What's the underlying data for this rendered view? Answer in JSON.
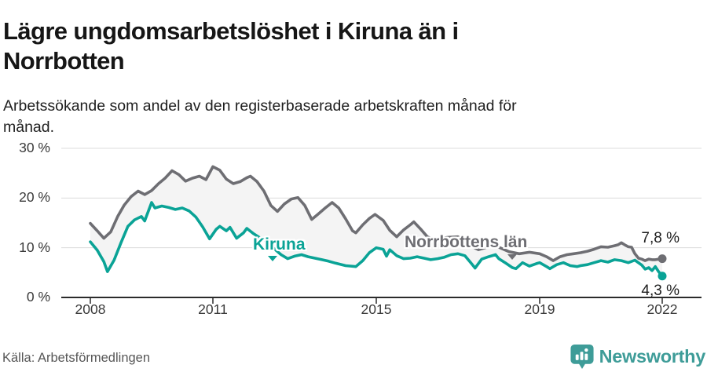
{
  "header": {
    "title_lines": [
      "Lägre ungdomsarbetslöshet i Kiruna än i",
      "Norrbotten"
    ],
    "subtitle_lines": [
      "Arbetssökande som andel av den registerbaserade arbetskraften månad för",
      "månad."
    ]
  },
  "footer": {
    "source": "Källa: Arbetsförmedlingen",
    "logo_text": "Newsworthy",
    "logo_color": "#3E9C98",
    "logo_icon": "speech-bubble-bar-chart"
  },
  "chart_data": {
    "type": "line",
    "unit": "%",
    "grid": "horizontal",
    "ylim": [
      0,
      30
    ],
    "xlim": [
      2007.6,
      2022.95
    ],
    "grid_color": "#dcdcdc",
    "axis_color": "#2b2b2b",
    "area_fill_color": "#f4f4f4",
    "y_ticks": [
      {
        "value": 0,
        "label": "0 %"
      },
      {
        "value": 10,
        "label": "10 %"
      },
      {
        "value": 20,
        "label": "20 %"
      },
      {
        "value": 30,
        "label": "30 %"
      }
    ],
    "x_ticks": [
      {
        "year": 2008,
        "label": "2008"
      },
      {
        "year": 2011,
        "label": "2011"
      },
      {
        "year": 2015,
        "label": "2015"
      },
      {
        "year": 2019,
        "label": "2019"
      },
      {
        "year": 2022,
        "label": "2022"
      }
    ],
    "series": [
      {
        "name": "Norrbottens län",
        "color": "#6e6e73",
        "end_label": "7,8 %",
        "end_value": 7.8,
        "points": [
          [
            2008.0,
            14.9
          ],
          [
            2008.17,
            13.4
          ],
          [
            2008.33,
            11.9
          ],
          [
            2008.5,
            13.2
          ],
          [
            2008.67,
            16.3
          ],
          [
            2008.83,
            18.6
          ],
          [
            2009.0,
            20.3
          ],
          [
            2009.17,
            21.4
          ],
          [
            2009.33,
            20.7
          ],
          [
            2009.5,
            21.5
          ],
          [
            2009.67,
            22.9
          ],
          [
            2009.83,
            24.0
          ],
          [
            2010.0,
            25.5
          ],
          [
            2010.17,
            24.7
          ],
          [
            2010.33,
            23.4
          ],
          [
            2010.5,
            24.0
          ],
          [
            2010.67,
            24.4
          ],
          [
            2010.83,
            23.7
          ],
          [
            2011.0,
            26.3
          ],
          [
            2011.17,
            25.6
          ],
          [
            2011.33,
            23.8
          ],
          [
            2011.5,
            22.9
          ],
          [
            2011.67,
            23.3
          ],
          [
            2011.83,
            24.1
          ],
          [
            2011.92,
            24.4
          ],
          [
            2012.08,
            23.3
          ],
          [
            2012.25,
            21.4
          ],
          [
            2012.42,
            18.5
          ],
          [
            2012.58,
            17.3
          ],
          [
            2012.75,
            18.8
          ],
          [
            2012.92,
            19.8
          ],
          [
            2013.08,
            20.1
          ],
          [
            2013.25,
            18.5
          ],
          [
            2013.42,
            15.7
          ],
          [
            2013.58,
            16.8
          ],
          [
            2013.75,
            18.0
          ],
          [
            2013.92,
            19.1
          ],
          [
            2014.08,
            18.0
          ],
          [
            2014.25,
            15.8
          ],
          [
            2014.42,
            13.4
          ],
          [
            2014.5,
            13.0
          ],
          [
            2014.67,
            14.6
          ],
          [
            2014.83,
            15.9
          ],
          [
            2014.97,
            16.7
          ],
          [
            2015.17,
            15.5
          ],
          [
            2015.33,
            13.5
          ],
          [
            2015.5,
            12.2
          ],
          [
            2015.67,
            13.6
          ],
          [
            2015.83,
            14.6
          ],
          [
            2015.92,
            15.2
          ],
          [
            2016.08,
            13.8
          ],
          [
            2016.25,
            12.2
          ],
          [
            2016.42,
            11.6
          ],
          [
            2016.58,
            11.9
          ],
          [
            2016.75,
            12.1
          ],
          [
            2017.0,
            12.2
          ],
          [
            2017.17,
            11.2
          ],
          [
            2017.33,
            10.3
          ],
          [
            2017.5,
            9.6
          ],
          [
            2017.67,
            10.0
          ],
          [
            2017.83,
            10.4
          ],
          [
            2018.0,
            10.1
          ],
          [
            2018.25,
            9.2
          ],
          [
            2018.5,
            8.8
          ],
          [
            2018.75,
            9.1
          ],
          [
            2019.0,
            8.8
          ],
          [
            2019.17,
            8.2
          ],
          [
            2019.33,
            7.4
          ],
          [
            2019.5,
            8.2
          ],
          [
            2019.67,
            8.6
          ],
          [
            2019.83,
            8.8
          ],
          [
            2020.0,
            9.0
          ],
          [
            2020.17,
            9.3
          ],
          [
            2020.33,
            9.7
          ],
          [
            2020.5,
            10.2
          ],
          [
            2020.67,
            10.1
          ],
          [
            2020.83,
            10.4
          ],
          [
            2020.92,
            10.6
          ],
          [
            2021.0,
            11.0
          ],
          [
            2021.08,
            10.6
          ],
          [
            2021.17,
            10.2
          ],
          [
            2021.25,
            10.1
          ],
          [
            2021.33,
            8.8
          ],
          [
            2021.42,
            7.9
          ],
          [
            2021.5,
            7.7
          ],
          [
            2021.58,
            7.4
          ],
          [
            2021.67,
            7.7
          ],
          [
            2021.75,
            7.6
          ],
          [
            2021.83,
            7.6
          ],
          [
            2021.92,
            7.7
          ],
          [
            2022.0,
            7.8
          ]
        ]
      },
      {
        "name": "Kiruna",
        "color": "#0aa396",
        "end_label": "4,3 %",
        "end_value": 4.3,
        "points": [
          [
            2008.0,
            11.2
          ],
          [
            2008.17,
            9.5
          ],
          [
            2008.33,
            7.2
          ],
          [
            2008.42,
            5.2
          ],
          [
            2008.58,
            7.5
          ],
          [
            2008.75,
            11.0
          ],
          [
            2008.92,
            14.3
          ],
          [
            2009.08,
            15.6
          ],
          [
            2009.25,
            16.3
          ],
          [
            2009.33,
            15.4
          ],
          [
            2009.5,
            19.1
          ],
          [
            2009.58,
            18.0
          ],
          [
            2009.75,
            18.4
          ],
          [
            2009.92,
            18.1
          ],
          [
            2010.08,
            17.7
          ],
          [
            2010.25,
            18.0
          ],
          [
            2010.42,
            17.4
          ],
          [
            2010.58,
            16.2
          ],
          [
            2010.75,
            14.2
          ],
          [
            2010.92,
            11.8
          ],
          [
            2011.08,
            13.7
          ],
          [
            2011.17,
            14.3
          ],
          [
            2011.33,
            13.4
          ],
          [
            2011.42,
            14.1
          ],
          [
            2011.58,
            11.9
          ],
          [
            2011.75,
            13.0
          ],
          [
            2011.83,
            13.9
          ],
          [
            2012.0,
            12.8
          ],
          [
            2012.17,
            11.9
          ],
          [
            2012.33,
            11.2
          ],
          [
            2012.5,
            9.8
          ],
          [
            2012.67,
            8.6
          ],
          [
            2012.83,
            7.8
          ],
          [
            2013.0,
            8.3
          ],
          [
            2013.17,
            8.6
          ],
          [
            2013.33,
            8.2
          ],
          [
            2013.5,
            7.9
          ],
          [
            2013.67,
            7.6
          ],
          [
            2013.83,
            7.3
          ],
          [
            2014.0,
            6.9
          ],
          [
            2014.25,
            6.4
          ],
          [
            2014.5,
            6.2
          ],
          [
            2014.67,
            7.4
          ],
          [
            2014.83,
            9.0
          ],
          [
            2015.0,
            10.0
          ],
          [
            2015.17,
            9.7
          ],
          [
            2015.25,
            8.3
          ],
          [
            2015.33,
            9.6
          ],
          [
            2015.5,
            8.4
          ],
          [
            2015.67,
            7.8
          ],
          [
            2015.83,
            7.9
          ],
          [
            2016.0,
            8.2
          ],
          [
            2016.17,
            7.9
          ],
          [
            2016.33,
            7.6
          ],
          [
            2016.5,
            7.8
          ],
          [
            2016.67,
            8.1
          ],
          [
            2016.83,
            8.6
          ],
          [
            2017.0,
            8.8
          ],
          [
            2017.17,
            8.4
          ],
          [
            2017.33,
            6.8
          ],
          [
            2017.42,
            5.9
          ],
          [
            2017.58,
            7.7
          ],
          [
            2017.75,
            8.2
          ],
          [
            2017.92,
            8.6
          ],
          [
            2018.0,
            7.8
          ],
          [
            2018.17,
            6.9
          ],
          [
            2018.33,
            6.0
          ],
          [
            2018.42,
            5.8
          ],
          [
            2018.58,
            7.0
          ],
          [
            2018.75,
            6.3
          ],
          [
            2018.92,
            6.8
          ],
          [
            2019.0,
            7.0
          ],
          [
            2019.17,
            6.2
          ],
          [
            2019.25,
            5.8
          ],
          [
            2019.42,
            6.6
          ],
          [
            2019.58,
            7.0
          ],
          [
            2019.75,
            6.4
          ],
          [
            2019.92,
            6.2
          ],
          [
            2020.0,
            6.4
          ],
          [
            2020.17,
            6.6
          ],
          [
            2020.33,
            7.0
          ],
          [
            2020.5,
            7.4
          ],
          [
            2020.67,
            7.1
          ],
          [
            2020.83,
            7.6
          ],
          [
            2021.0,
            7.4
          ],
          [
            2021.17,
            7.0
          ],
          [
            2021.33,
            7.5
          ],
          [
            2021.5,
            6.5
          ],
          [
            2021.58,
            5.7
          ],
          [
            2021.67,
            6.0
          ],
          [
            2021.75,
            5.4
          ],
          [
            2021.83,
            6.2
          ],
          [
            2021.92,
            5.1
          ],
          [
            2022.0,
            4.3
          ]
        ]
      }
    ]
  }
}
